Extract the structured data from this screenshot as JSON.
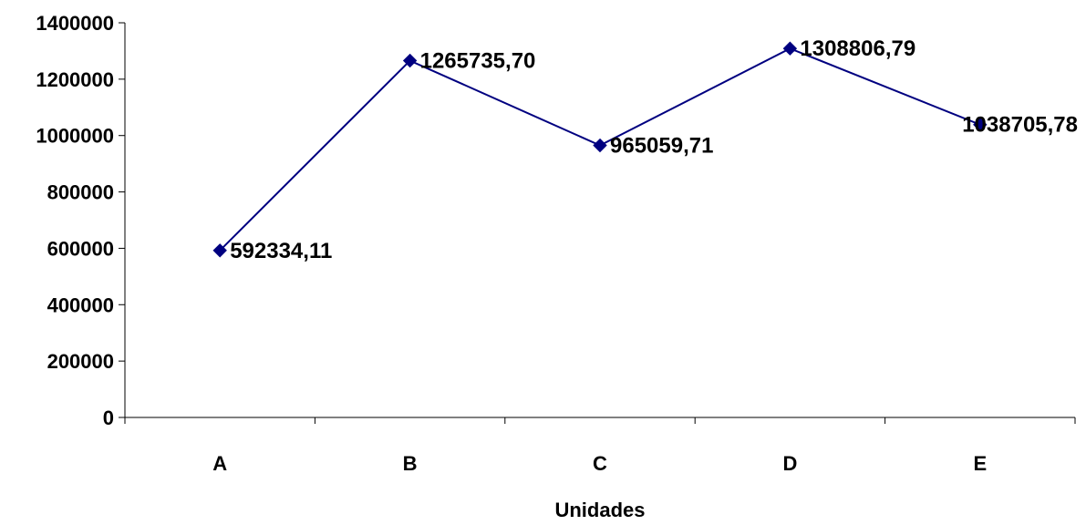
{
  "chart_data": {
    "type": "line",
    "title": "",
    "xlabel": "Unidades",
    "ylabel": "",
    "categories": [
      "A",
      "B",
      "C",
      "D",
      "E"
    ],
    "series": [
      {
        "values": [
          592334.11,
          1265735.7,
          965059.71,
          1308806.79,
          1038705.78
        ],
        "labels": [
          "592334,11",
          "1265735,70",
          "965059,71",
          "1308806,79",
          "1038705,78"
        ],
        "color": "#000080"
      }
    ],
    "ylim": [
      0,
      1400000
    ],
    "yticks": [
      0,
      200000,
      400000,
      600000,
      800000,
      1000000,
      1200000,
      1400000
    ],
    "ytick_labels": [
      "0",
      "200000",
      "400000",
      "600000",
      "800000",
      "1000000",
      "1200000",
      "1400000"
    ],
    "grid": false,
    "legend": "none",
    "marker": "diamond"
  }
}
